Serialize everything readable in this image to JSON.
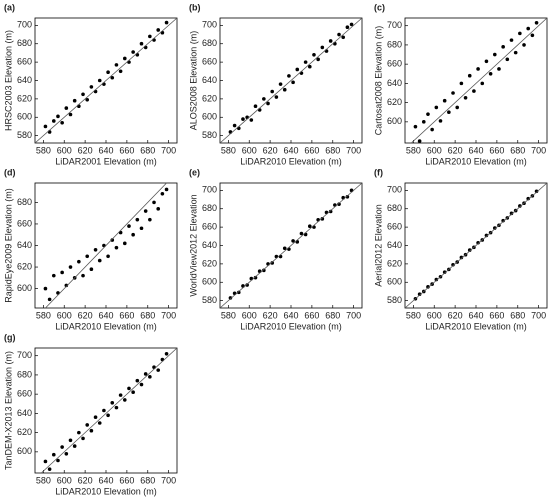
{
  "chart_data": [
    {
      "type": "scatter",
      "label": "(a)",
      "xlabel": "LiDAR2001 Elevation (m)",
      "ylabel": "HRSC2003 Elevation (m)",
      "color": "#000000",
      "diagonal": true,
      "xlim": [
        572,
        708
      ],
      "ylim": [
        572,
        708
      ],
      "xticks": [
        580,
        600,
        620,
        640,
        660,
        680,
        700
      ],
      "yticks": [
        580,
        600,
        620,
        640,
        660,
        680,
        700
      ],
      "x": [
        582,
        586,
        590,
        594,
        598,
        602,
        606,
        610,
        614,
        618,
        622,
        626,
        630,
        634,
        638,
        642,
        646,
        650,
        654,
        658,
        662,
        666,
        670,
        674,
        678,
        682,
        686,
        690,
        694,
        698
      ],
      "y": [
        590,
        584,
        596,
        601,
        594,
        610,
        603,
        618,
        612,
        625,
        619,
        633,
        628,
        640,
        636,
        649,
        643,
        657,
        650,
        664,
        660,
        671,
        668,
        680,
        676,
        688,
        684,
        695,
        692,
        703
      ]
    },
    {
      "type": "scatter",
      "label": "(b)",
      "xlabel": "LiDAR2010 Elevation (m)",
      "ylabel": "ALOS2008 Elevation (m)",
      "color": "#000000",
      "diagonal": true,
      "xlim": [
        572,
        708
      ],
      "ylim": [
        572,
        708
      ],
      "xticks": [
        580,
        600,
        620,
        640,
        660,
        680,
        700
      ],
      "yticks": [
        580,
        600,
        620,
        640,
        660,
        680,
        700
      ],
      "x": [
        582,
        586,
        590,
        594,
        598,
        602,
        606,
        610,
        614,
        618,
        622,
        626,
        630,
        634,
        638,
        642,
        646,
        650,
        654,
        658,
        662,
        666,
        670,
        674,
        678,
        682,
        686,
        690,
        694,
        698
      ],
      "y": [
        584,
        591,
        588,
        598,
        600,
        597,
        612,
        608,
        620,
        615,
        628,
        622,
        636,
        630,
        645,
        638,
        652,
        648,
        660,
        655,
        668,
        663,
        676,
        672,
        683,
        680,
        690,
        687,
        698,
        701
      ]
    },
    {
      "type": "scatter",
      "label": "(c)",
      "xlabel": "LiDAR2010 Elevation (m)",
      "ylabel": "Cartosat2008 Elevation (m)",
      "color": "#000000",
      "diagonal": true,
      "xlim": [
        572,
        708
      ],
      "ylim": [
        578,
        708
      ],
      "xticks": [
        580,
        600,
        620,
        640,
        660,
        680,
        700
      ],
      "yticks": [
        600,
        620,
        640,
        660,
        680,
        700
      ],
      "x": [
        582,
        586,
        590,
        594,
        598,
        602,
        606,
        610,
        614,
        618,
        622,
        626,
        630,
        634,
        638,
        642,
        646,
        650,
        654,
        658,
        662,
        666,
        670,
        674,
        678,
        682,
        686,
        690,
        694,
        698
      ],
      "y": [
        595,
        580,
        600,
        608,
        592,
        615,
        601,
        622,
        610,
        630,
        615,
        640,
        625,
        648,
        632,
        655,
        640,
        663,
        650,
        670,
        655,
        678,
        665,
        685,
        672,
        692,
        680,
        697,
        690,
        703
      ]
    },
    {
      "type": "scatter",
      "label": "(d)",
      "xlabel": "LiDAR2010 Elevation (m)",
      "ylabel": "RapidEye2009 Elevation (m)",
      "color": "#000000",
      "diagonal": true,
      "xlim": [
        572,
        708
      ],
      "ylim": [
        582,
        698
      ],
      "xticks": [
        580,
        600,
        620,
        640,
        660,
        680,
        700
      ],
      "yticks": [
        600,
        620,
        640,
        660,
        680
      ],
      "x": [
        582,
        586,
        590,
        594,
        598,
        602,
        606,
        610,
        614,
        618,
        622,
        626,
        630,
        634,
        638,
        642,
        646,
        650,
        654,
        658,
        662,
        666,
        670,
        674,
        678,
        682,
        686,
        690,
        694,
        698
      ],
      "y": [
        600,
        590,
        612,
        596,
        615,
        603,
        620,
        610,
        625,
        612,
        630,
        618,
        636,
        626,
        640,
        630,
        645,
        638,
        652,
        642,
        658,
        650,
        664,
        656,
        672,
        664,
        680,
        674,
        688,
        692
      ]
    },
    {
      "type": "scatter",
      "label": "(e)",
      "xlabel": "LiDAR2010 Elevation (m)",
      "ylabel": "WorldView2012 Elevation",
      "color": "#000000",
      "diagonal": true,
      "xlim": [
        572,
        708
      ],
      "ylim": [
        572,
        708
      ],
      "xticks": [
        580,
        600,
        620,
        640,
        660,
        680,
        700
      ],
      "yticks": [
        580,
        600,
        620,
        640,
        660,
        680,
        700
      ],
      "x": [
        582,
        586,
        590,
        594,
        598,
        602,
        606,
        610,
        614,
        618,
        622,
        626,
        630,
        634,
        638,
        642,
        646,
        650,
        654,
        658,
        662,
        666,
        670,
        674,
        678,
        682,
        686,
        690,
        694,
        698
      ],
      "y": [
        583,
        588,
        589,
        596,
        597,
        604,
        605,
        612,
        613,
        620,
        621,
        628,
        628,
        637,
        636,
        645,
        644,
        653,
        652,
        661,
        660,
        668,
        669,
        676,
        677,
        684,
        685,
        692,
        693,
        700
      ]
    },
    {
      "type": "scatter",
      "label": "(f)",
      "xlabel": "LiDAR2010 Elevation (m)",
      "ylabel": "Aerial2012 Elevation",
      "color": "#000000",
      "diagonal": true,
      "xlim": [
        572,
        708
      ],
      "ylim": [
        572,
        708
      ],
      "xticks": [
        580,
        600,
        620,
        640,
        660,
        680,
        700
      ],
      "yticks": [
        580,
        600,
        620,
        640,
        660,
        680,
        700
      ],
      "x": [
        582,
        586,
        590,
        594,
        598,
        602,
        606,
        610,
        614,
        618,
        622,
        626,
        630,
        634,
        638,
        642,
        646,
        650,
        654,
        658,
        662,
        666,
        670,
        674,
        678,
        682,
        686,
        690,
        694,
        698
      ],
      "y": [
        582,
        587,
        590,
        595,
        598,
        603,
        606,
        611,
        614,
        619,
        622,
        627,
        630,
        635,
        638,
        643,
        646,
        651,
        654,
        659,
        662,
        667,
        670,
        675,
        678,
        683,
        686,
        691,
        694,
        699
      ]
    },
    {
      "type": "scatter",
      "label": "(g)",
      "xlabel": "LiDAR2010 Elevation (m)",
      "ylabel": "TanDEM-X2013 Elevation (m)",
      "color": "#000000",
      "diagonal": true,
      "xlim": [
        572,
        708
      ],
      "ylim": [
        578,
        708
      ],
      "xticks": [
        580,
        600,
        620,
        640,
        660,
        680,
        700
      ],
      "yticks": [
        600,
        620,
        640,
        660,
        680,
        700
      ],
      "x": [
        582,
        586,
        590,
        594,
        598,
        602,
        606,
        610,
        614,
        618,
        622,
        626,
        630,
        634,
        638,
        642,
        646,
        650,
        654,
        658,
        662,
        666,
        670,
        674,
        678,
        682,
        686,
        690,
        694,
        698
      ],
      "y": [
        590,
        582,
        597,
        591,
        605,
        598,
        612,
        606,
        620,
        614,
        628,
        622,
        636,
        630,
        643,
        638,
        651,
        646,
        659,
        654,
        666,
        662,
        674,
        670,
        681,
        678,
        688,
        685,
        696,
        702
      ]
    }
  ]
}
